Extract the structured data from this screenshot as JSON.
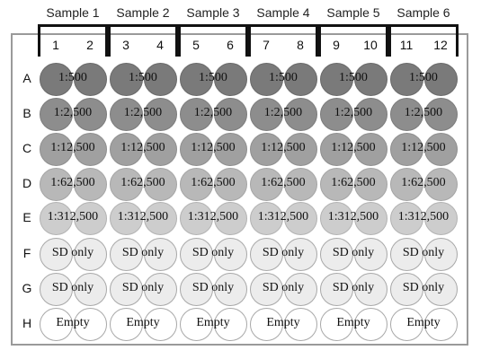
{
  "samples": [
    "Sample 1",
    "Sample 2",
    "Sample 3",
    "Sample 4",
    "Sample 5",
    "Sample 6"
  ],
  "columns": [
    "1",
    "2",
    "3",
    "4",
    "5",
    "6",
    "7",
    "8",
    "9",
    "10",
    "11",
    "12"
  ],
  "rows": [
    {
      "letter": "A",
      "label": "1:500",
      "level": 1
    },
    {
      "letter": "B",
      "label": "1:2,500",
      "level": 2
    },
    {
      "letter": "C",
      "label": "1:12,500",
      "level": 3
    },
    {
      "letter": "D",
      "label": "1:62,500",
      "level": 4
    },
    {
      "letter": "E",
      "label": "1:312,500",
      "level": 5
    },
    {
      "letter": "F",
      "label": "SD only",
      "level": 6
    },
    {
      "letter": "G",
      "label": "SD only",
      "level": 6
    },
    {
      "letter": "H",
      "label": "Empty",
      "level": 7
    }
  ],
  "colors": {
    "plate_border": "#9a9a9a",
    "bracket": "#111111"
  }
}
